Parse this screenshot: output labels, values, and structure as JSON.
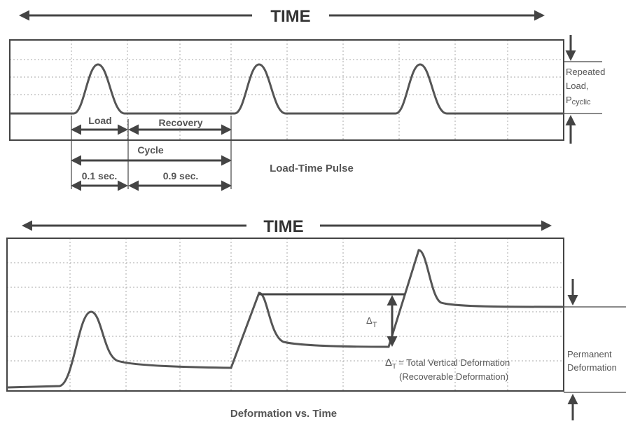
{
  "top_panel": {
    "time_label": "TIME",
    "side_label_lines": [
      "Repeated",
      "Load,"
    ],
    "side_symbol": "P",
    "side_subscript": "cyclic",
    "load": "Load",
    "recovery": "Recovery",
    "cycle": "Cycle",
    "load_duration": "0.1 sec.",
    "recovery_duration": "0.9 sec.",
    "caption": "Load-Time Pulse"
  },
  "bottom_panel": {
    "time_label": "TIME",
    "delta_symbol": "Δ",
    "delta_subscript": "T",
    "side_label_lines": [
      "Permanent",
      "Deformation"
    ],
    "legend_symbol": "Δ",
    "legend_subscript": "T",
    "legend_text": "= Total Vertical Deformation",
    "legend_note": "(Recoverable Deformation)",
    "caption": "Deformation vs. Time"
  }
}
